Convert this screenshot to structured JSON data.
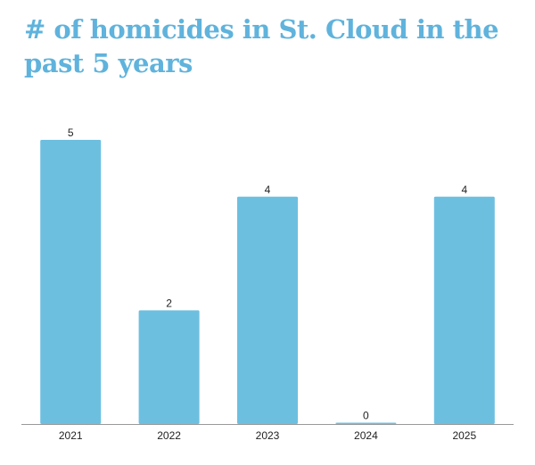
{
  "chart_data": {
    "type": "bar",
    "title": "# of homicides in St. Cloud in the past 5 years",
    "categories": [
      "2021",
      "2022",
      "2023",
      "2024",
      "2025"
    ],
    "values": [
      5,
      2,
      4,
      0,
      4
    ],
    "xlabel": "",
    "ylabel": "",
    "ylim": [
      0,
      5
    ],
    "grid": false,
    "legend": "none",
    "data_labels": true,
    "colors": {
      "bar": "#6dbfe0",
      "baseline": "#999999",
      "title": "#5fb3dc",
      "label": "#222222"
    }
  }
}
